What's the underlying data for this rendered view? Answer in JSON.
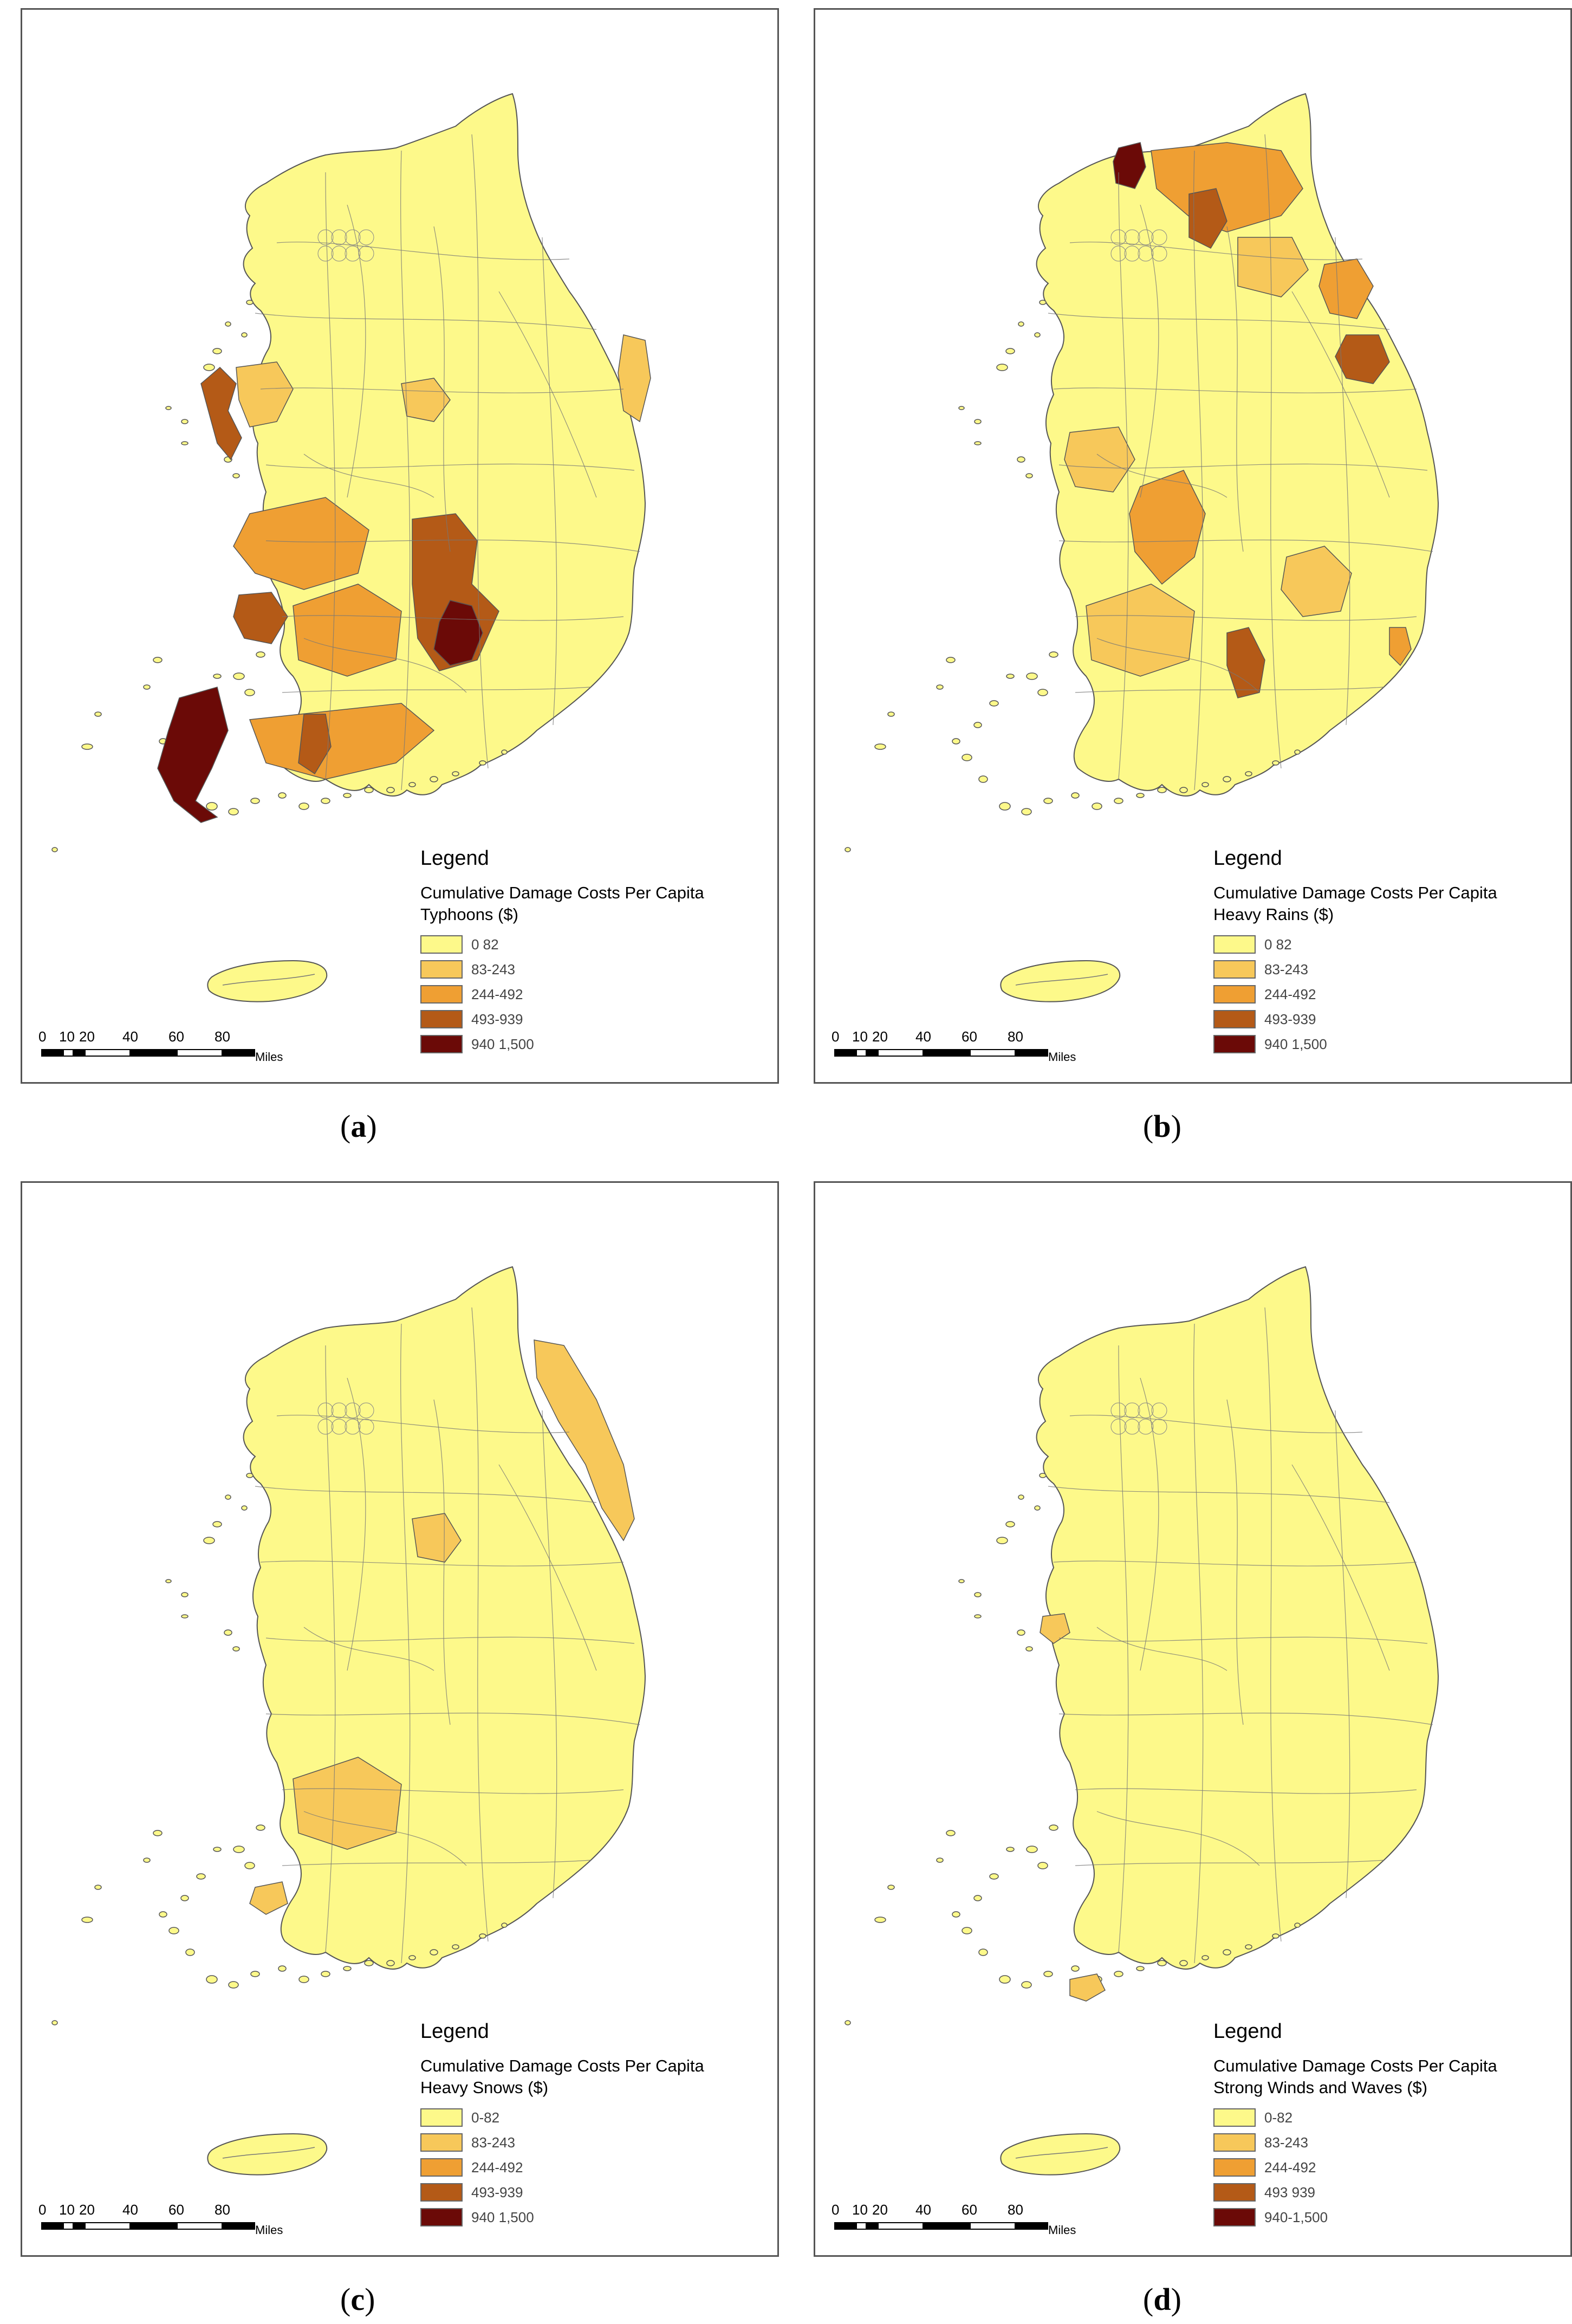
{
  "legend": {
    "heading": "Legend",
    "subtitle": "Cumulative Damage Costs Per Capita",
    "classes": [
      {
        "label_a": "0–82",
        "label_b": "0  82",
        "color": "#fdf98a"
      },
      {
        "label_a": "83–243",
        "label_b": "83-243",
        "color": "#f7c85a"
      },
      {
        "label_a": "244–492",
        "label_b": "244-492",
        "color": "#ef9f33"
      },
      {
        "label_a": "493–939",
        "label_b": "493-939",
        "color": "#b45a17"
      },
      {
        "label_a": "940–1,500",
        "label_b": "940  1,500",
        "color": "#6b0a07"
      }
    ]
  },
  "scalebar": {
    "ticks": [
      "0",
      "10",
      "20",
      "40",
      "60",
      "80"
    ],
    "unit": "Miles"
  },
  "panels": [
    {
      "id": "a",
      "caption_open": "(",
      "caption_letter": "a",
      "caption_close": ")",
      "hazard": "Typhoons ($)",
      "labels": [
        "0  82",
        "83-243",
        "244-492",
        "493-939",
        "940  1,500"
      ],
      "highlights": [
        {
          "region": "west-coast-islands",
          "class": 3
        },
        {
          "region": "central-west",
          "class": 1
        },
        {
          "region": "central-north",
          "class": 1
        },
        {
          "region": "east-coast",
          "class": 1
        },
        {
          "region": "southwest-inland",
          "class": 2
        },
        {
          "region": "southwest-dark",
          "class": 3
        },
        {
          "region": "south-central",
          "class": 2
        },
        {
          "region": "southeast-inland",
          "class": 3
        },
        {
          "region": "southeast-core",
          "class": 4
        },
        {
          "region": "southwest-islands",
          "class": 4
        },
        {
          "region": "south-coast",
          "class": 2
        },
        {
          "region": "south-coast-dark",
          "class": 3
        }
      ]
    },
    {
      "id": "b",
      "caption_open": "(",
      "caption_letter": "b",
      "caption_close": ")",
      "hazard": "Heavy Rains ($)",
      "labels": [
        "0  82",
        "83-243",
        "244-492",
        "493-939",
        "940  1,500"
      ],
      "highlights": [
        {
          "region": "northwest-tip",
          "class": 4
        },
        {
          "region": "north-band",
          "class": 2
        },
        {
          "region": "north-dark",
          "class": 3
        },
        {
          "region": "north-mid",
          "class": 1
        },
        {
          "region": "northeast",
          "class": 2
        },
        {
          "region": "east-dark",
          "class": 3
        },
        {
          "region": "west-mid",
          "class": 1
        },
        {
          "region": "central-south",
          "class": 2
        },
        {
          "region": "south-central",
          "class": 1
        },
        {
          "region": "southeast-mid",
          "class": 1
        },
        {
          "region": "south-dark",
          "class": 3
        },
        {
          "region": "southeast-coast",
          "class": 2
        }
      ]
    },
    {
      "id": "c",
      "caption_open": "(",
      "caption_letter": "c",
      "caption_close": ")",
      "hazard": "Heavy Snows ($)",
      "labels": [
        "0-82",
        "83-243",
        "244-492",
        "493-939",
        "940  1,500"
      ],
      "highlights": [
        {
          "region": "east-coast-strip",
          "class": 1
        },
        {
          "region": "central",
          "class": 1
        },
        {
          "region": "south-central",
          "class": 1
        },
        {
          "region": "southwest-coast",
          "class": 1
        }
      ]
    },
    {
      "id": "d",
      "caption_open": "(",
      "caption_letter": "d",
      "caption_close": ")",
      "hazard": "Strong Winds and Waves ($)",
      "labels": [
        "0-82",
        "83-243",
        "244-492",
        "493  939",
        "940-1,500"
      ],
      "highlights": [
        {
          "region": "west-coast-small",
          "class": 1
        },
        {
          "region": "south-islands",
          "class": 1
        }
      ]
    }
  ]
}
